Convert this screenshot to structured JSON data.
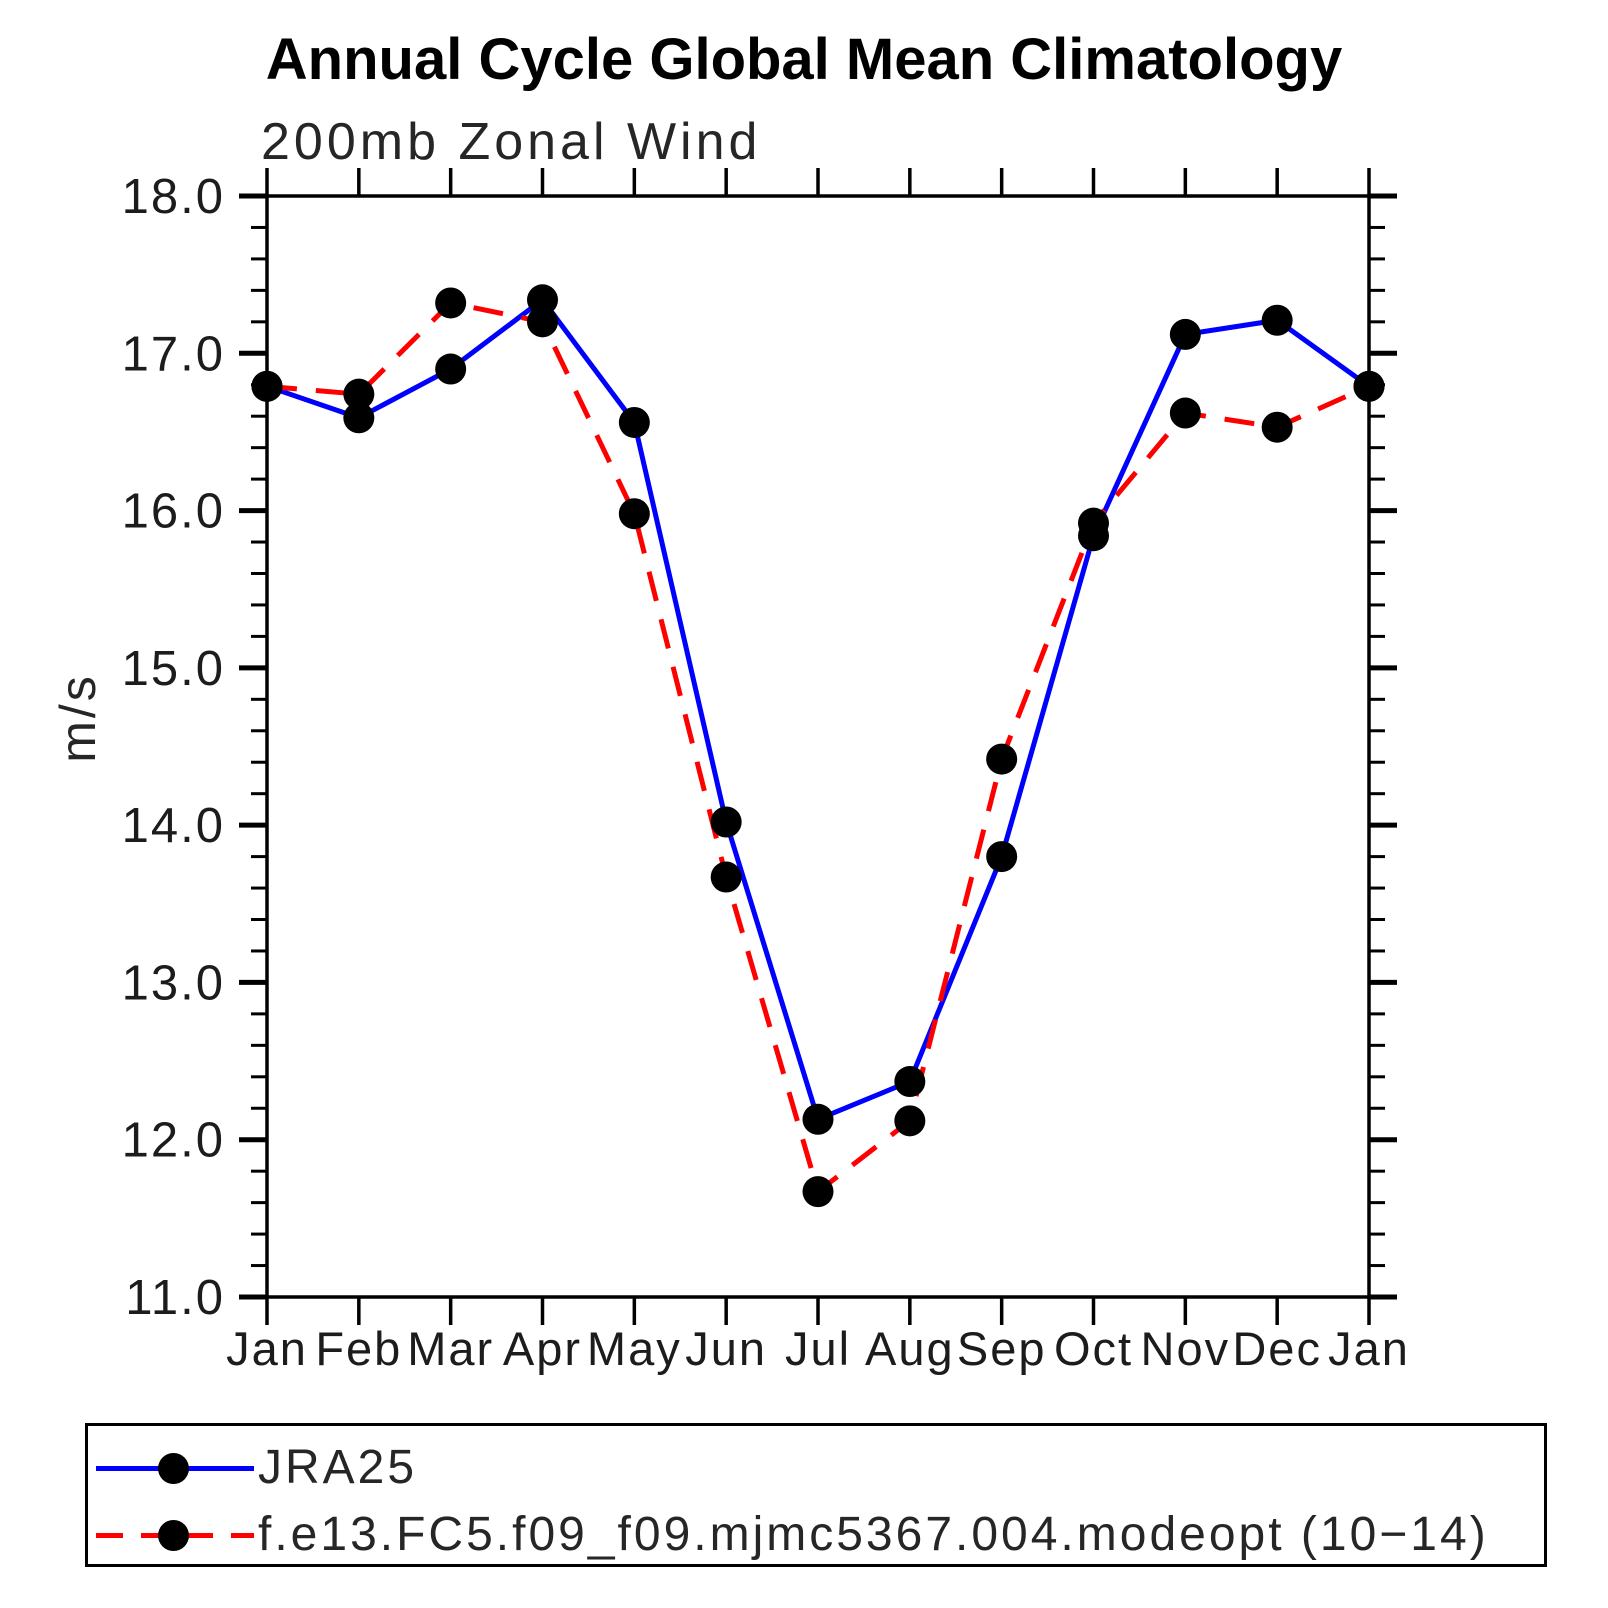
{
  "header": {
    "title": "Annual Cycle Global Mean Climatology",
    "subtitle": "200mb Zonal Wind"
  },
  "chart_data": {
    "type": "line",
    "title": "Annual Cycle Global Mean Climatology",
    "subtitle": "200mb Zonal Wind",
    "xlabel": "",
    "ylabel": "m/s",
    "ylim": [
      11.0,
      18.0
    ],
    "y_major_step": 1.0,
    "y_minor_step": 0.2,
    "y_tick_labels": [
      "18.0",
      "17.0",
      "16.0",
      "15.0",
      "14.0",
      "13.0",
      "12.0",
      "11.0"
    ],
    "categories": [
      "Jan",
      "Feb",
      "Mar",
      "Apr",
      "May",
      "Jun",
      "Jul",
      "Aug",
      "Sep",
      "Oct",
      "Nov",
      "Dec",
      "Jan"
    ],
    "grid": false,
    "legend_position": "bottom-left",
    "frame_color": "#000000",
    "marker_color": "#000000",
    "series": [
      {
        "name": "JRA25",
        "color": "#0000ff",
        "style": "solid",
        "marker": "circle",
        "values": [
          16.79,
          16.59,
          16.9,
          17.34,
          16.56,
          14.02,
          12.13,
          12.37,
          13.8,
          15.84,
          17.12,
          17.21,
          16.79
        ]
      },
      {
        "name": "f.e13.FC5.f09_f09.mjmc5367.004.modeopt (10−14)",
        "color": "#ff0000",
        "style": "dashed",
        "marker": "circle",
        "values": [
          16.79,
          16.74,
          17.32,
          17.2,
          15.98,
          13.67,
          11.67,
          12.12,
          14.42,
          15.92,
          16.62,
          16.53,
          16.79
        ]
      }
    ]
  }
}
